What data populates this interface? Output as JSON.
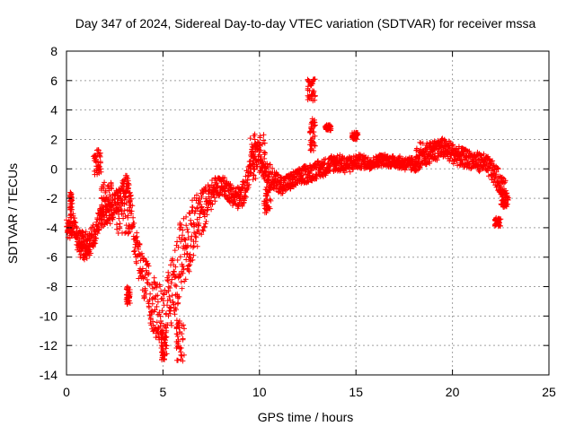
{
  "chart_data": {
    "type": "scatter",
    "title": "Day 347 of 2024, Sidereal Day-to-day VTEC variation (SDTVAR) for receiver mssa",
    "xlabel": "GPS time / hours",
    "ylabel": "SDTVAR / TECUs",
    "xlim": [
      0,
      25
    ],
    "ylim": [
      -14,
      8
    ],
    "xticks": [
      0,
      5,
      10,
      15,
      20,
      25
    ],
    "yticks": [
      -14,
      -12,
      -10,
      -8,
      -6,
      -4,
      -2,
      0,
      2,
      4,
      6,
      8
    ],
    "grid": true,
    "marker": "+",
    "series": [
      {
        "name": "SDTVAR",
        "color": "#ff0000",
        "trace": {
          "x": [
            0.0,
            0.2,
            0.35,
            0.5,
            0.7,
            0.9,
            1.1,
            1.3,
            1.5,
            1.7,
            1.9,
            2.1,
            2.3,
            2.6,
            2.9,
            3.1,
            3.3,
            3.5,
            3.7,
            3.9,
            4.1,
            4.3,
            4.5,
            4.7,
            4.9,
            5.0,
            5.2,
            5.4,
            5.6,
            5.8,
            6.0,
            6.3,
            6.6,
            6.9,
            7.2,
            7.5,
            7.8,
            8.1,
            8.4,
            8.7,
            9.0,
            9.3,
            9.6,
            9.9,
            10.2,
            10.5,
            10.8,
            11.1,
            11.4,
            11.7,
            12.0,
            12.3,
            12.6,
            12.9,
            13.2,
            13.5,
            13.8,
            14.1,
            14.4,
            14.7,
            15.0,
            15.3,
            15.6,
            15.9,
            16.2,
            16.5,
            16.8,
            17.1,
            17.4,
            17.7,
            18.0,
            18.3,
            18.6,
            18.9,
            19.2,
            19.5,
            19.8,
            20.1,
            20.4,
            20.7,
            21.0,
            21.3,
            21.6,
            21.9,
            22.2,
            22.5,
            22.8
          ],
          "y": [
            -4.0,
            -4.2,
            -3.6,
            -4.5,
            -5.0,
            -5.4,
            -5.2,
            -4.8,
            -4.2,
            -3.5,
            -3.0,
            -2.8,
            -3.0,
            -2.2,
            -1.6,
            -1.2,
            -2.2,
            -4.5,
            -6.0,
            -7.0,
            -7.8,
            -8.5,
            -9.3,
            -9.8,
            -10.0,
            -10.2,
            -9.5,
            -8.6,
            -7.6,
            -6.6,
            -5.8,
            -4.9,
            -4.0,
            -3.2,
            -2.5,
            -1.8,
            -1.2,
            -1.1,
            -1.5,
            -1.9,
            -2.0,
            -1.2,
            0.5,
            1.0,
            0.3,
            -0.4,
            -0.8,
            -1.1,
            -1.0,
            -0.8,
            -0.6,
            -0.4,
            -0.3,
            -0.1,
            0.0,
            0.2,
            0.4,
            0.4,
            0.3,
            0.3,
            0.5,
            0.5,
            0.4,
            0.4,
            0.6,
            0.6,
            0.5,
            0.5,
            0.4,
            0.3,
            0.3,
            0.5,
            0.8,
            1.1,
            1.3,
            1.4,
            1.2,
            1.0,
            0.8,
            0.7,
            0.6,
            0.5,
            0.4,
            0.1,
            -0.4,
            -1.0,
            -1.8
          ]
        },
        "spread": {
          "x": [
            0,
            1,
            2,
            3,
            3.5,
            4,
            4.5,
            5,
            5.5,
            6,
            6.5,
            7,
            7.5,
            8,
            9,
            10,
            11,
            12,
            13,
            14,
            15,
            16,
            17,
            18,
            19,
            20,
            21,
            22,
            23
          ],
          "y": [
            0.6,
            0.9,
            0.9,
            0.8,
            1.1,
            1.6,
            2.0,
            2.2,
            2.4,
            2.6,
            2.2,
            1.6,
            1.0,
            0.6,
            0.8,
            1.0,
            0.6,
            0.6,
            0.6,
            0.6,
            0.5,
            0.4,
            0.4,
            0.5,
            0.7,
            0.7,
            0.6,
            0.7,
            0.9
          ]
        },
        "clusters": [
          {
            "x": [
              0.18,
              0.3
            ],
            "y": [
              -3.4,
              -1.6
            ]
          },
          {
            "x": [
              0.5,
              1.2
            ],
            "y": [
              -6.2,
              -4.2
            ]
          },
          {
            "x": [
              1.4,
              1.8
            ],
            "y": [
              -0.4,
              1.3
            ]
          },
          {
            "x": [
              1.8,
              2.4
            ],
            "y": [
              -2.8,
              -0.9
            ]
          },
          {
            "x": [
              2.6,
              3.3
            ],
            "y": [
              -4.4,
              -2.2
            ]
          },
          {
            "x": [
              3.1,
              3.3
            ],
            "y": [
              -9.2,
              -8.0
            ]
          },
          {
            "x": [
              4.9,
              5.2
            ],
            "y": [
              -13.0,
              -11.0
            ]
          },
          {
            "x": [
              5.7,
              6.1
            ],
            "y": [
              -13.1,
              -10.0
            ]
          },
          {
            "x": [
              9.4,
              10.3
            ],
            "y": [
              -0.8,
              2.4
            ]
          },
          {
            "x": [
              10.2,
              10.6
            ],
            "y": [
              -3.0,
              -1.2
            ]
          },
          {
            "x": [
              12.5,
              12.9
            ],
            "y": [
              4.6,
              6.1
            ]
          },
          {
            "x": [
              12.6,
              12.9
            ],
            "y": [
              1.2,
              3.4
            ]
          },
          {
            "x": [
              13.4,
              13.7
            ],
            "y": [
              2.6,
              3.0
            ]
          },
          {
            "x": [
              14.8,
              15.1
            ],
            "y": [
              2.0,
              2.5
            ]
          },
          {
            "x": [
              18.1,
              20.1
            ],
            "y": [
              1.1,
              1.9
            ]
          },
          {
            "x": [
              22.2,
              22.5
            ],
            "y": [
              -3.9,
              -3.3
            ]
          },
          {
            "x": [
              22.5,
              22.9
            ],
            "y": [
              -2.6,
              -1.6
            ]
          }
        ]
      }
    ]
  }
}
